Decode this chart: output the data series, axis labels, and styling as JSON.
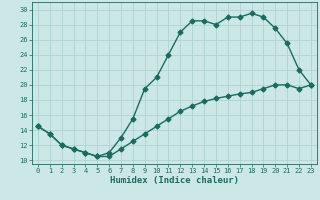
{
  "xlabel": "Humidex (Indice chaleur)",
  "ylabel": "",
  "xlim": [
    -0.5,
    23.5
  ],
  "ylim": [
    9.5,
    31
  ],
  "xticks": [
    0,
    1,
    2,
    3,
    4,
    5,
    6,
    7,
    8,
    9,
    10,
    11,
    12,
    13,
    14,
    15,
    16,
    17,
    18,
    19,
    20,
    21,
    22,
    23
  ],
  "yticks": [
    10,
    12,
    14,
    16,
    18,
    20,
    22,
    24,
    26,
    28,
    30
  ],
  "background_color": "#cce8e6",
  "grid_color": "#aacfcc",
  "line_color": "#1a6b60",
  "line1_x": [
    0,
    1,
    2,
    3,
    4,
    5,
    6,
    7,
    8,
    9,
    10,
    11,
    12,
    13,
    14,
    15,
    16,
    17,
    18,
    19,
    20,
    21,
    22,
    23
  ],
  "line1_y": [
    14.5,
    13.5,
    12.0,
    11.5,
    11.0,
    10.5,
    11.0,
    13.0,
    15.5,
    19.5,
    21.0,
    24.0,
    27.0,
    28.5,
    28.5,
    28.0,
    29.0,
    29.0,
    29.5,
    29.0,
    27.5,
    25.5,
    22.0,
    20.0
  ],
  "line2_x": [
    0,
    1,
    2,
    3,
    4,
    5,
    6,
    7,
    8,
    9,
    10,
    11,
    12,
    13,
    14,
    15,
    16,
    17,
    18,
    19,
    20,
    21,
    22,
    23
  ],
  "line2_y": [
    14.5,
    13.5,
    12.0,
    11.5,
    11.0,
    10.5,
    10.5,
    11.5,
    12.5,
    13.5,
    14.5,
    15.5,
    16.5,
    17.2,
    17.8,
    18.2,
    18.5,
    18.8,
    19.0,
    19.5,
    20.0,
    20.0,
    19.5,
    20.0
  ],
  "marker": "D",
  "marker_size": 2.5,
  "line_width": 1.0,
  "label_fontsize": 6.5,
  "tick_fontsize": 5.0
}
